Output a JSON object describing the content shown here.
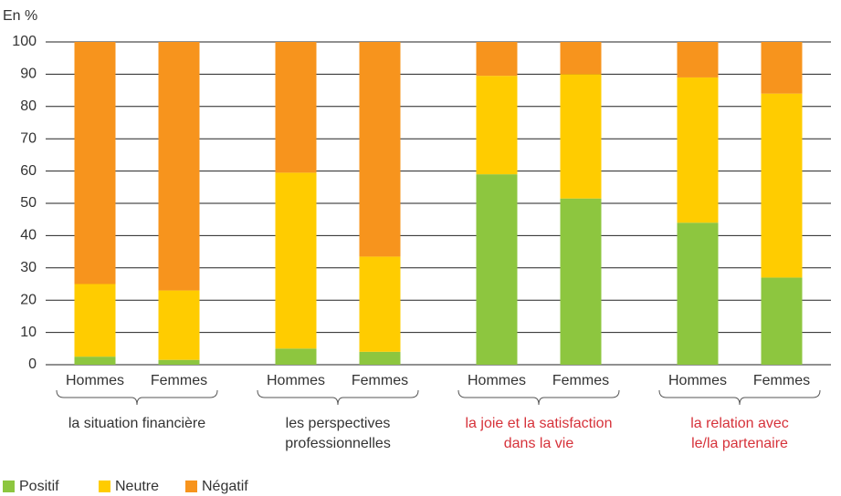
{
  "chart_data": {
    "type": "stacked-bar",
    "y_label": "En %",
    "groups": [
      {
        "lines": [
          "la situation financière"
        ],
        "color": "#333333",
        "categories": [
          "Hommes",
          "Femmes"
        ]
      },
      {
        "lines": [
          "les perspectives",
          "professionnelles"
        ],
        "color": "#333333",
        "categories": [
          "Hommes",
          "Femmes"
        ]
      },
      {
        "lines": [
          "la joie et la satisfaction",
          "dans la vie"
        ],
        "color": "#d6323a",
        "categories": [
          "Hommes",
          "Femmes"
        ]
      },
      {
        "lines": [
          "la relation avec",
          "le/la partenaire"
        ],
        "color": "#d6323a",
        "categories": [
          "Hommes",
          "Femmes"
        ]
      }
    ],
    "series": [
      {
        "name": "Positif",
        "color": "#8dc63f",
        "values": [
          2.5,
          1.5,
          5,
          4,
          59,
          51.5,
          44,
          27
        ]
      },
      {
        "name": "Neutre",
        "color": "#ffcc00",
        "values": [
          22.5,
          21.5,
          54.5,
          29.5,
          30.5,
          38.5,
          45,
          57
        ]
      },
      {
        "name": "Négatif",
        "color": "#f7941d",
        "values": [
          75,
          77,
          40.5,
          66.5,
          10.5,
          10,
          11,
          16
        ]
      }
    ],
    "ylim": [
      0,
      100
    ],
    "yticks": [
      0,
      10,
      20,
      30,
      40,
      50,
      60,
      70,
      80,
      90,
      100
    ],
    "grid": true,
    "legend": "bottom-left"
  }
}
